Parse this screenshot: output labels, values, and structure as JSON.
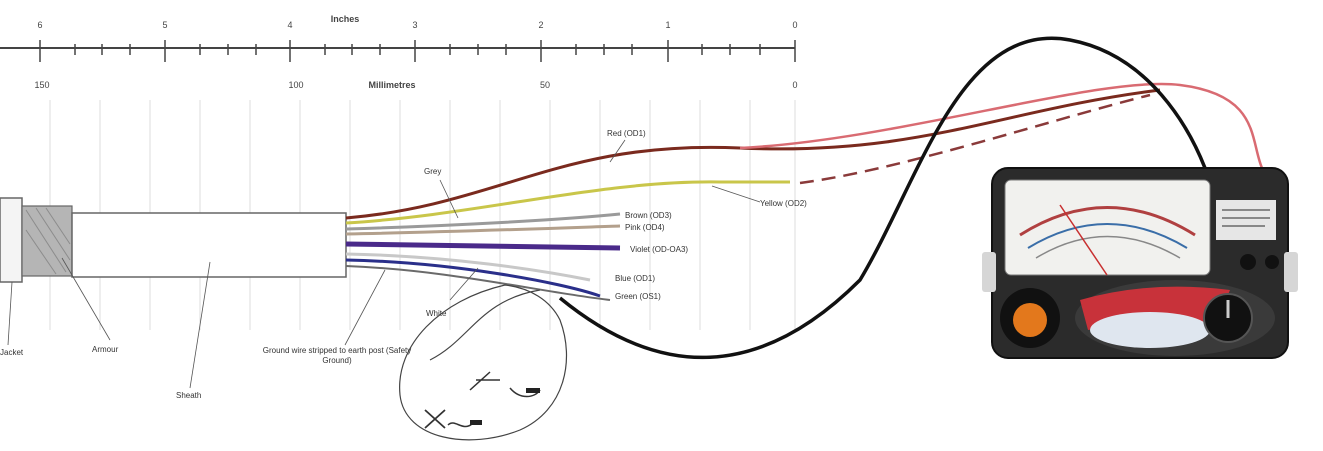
{
  "ruler": {
    "top_units": "Inches",
    "bottom_units": "Millimetres",
    "inch_ticks": [
      "6",
      "5",
      "4",
      "3",
      "2",
      "1",
      "0"
    ],
    "mm_ticks": [
      "150",
      "100",
      "50",
      "0"
    ]
  },
  "wire_labels": {
    "red": "Red (OD1)",
    "grey": "Grey",
    "yellow": "Yellow (OD2)",
    "brown": "Brown (OD3)",
    "pink": "Pink (OD4)",
    "violet": "Violet (OD-OA3)",
    "blue": "Blue (OD1)",
    "green": "Green (OS1)",
    "white": "White"
  },
  "part_labels": {
    "outer_jacket": "Jacket",
    "armour": "Armour",
    "sheath": "Sheath",
    "ground_wire": "Ground wire stripped to earth post (Safety Ground)"
  },
  "colors": {
    "red_wire": "#d96b72",
    "brown_wire": "#7a2a1e",
    "yellow_wire": "#c9c64a",
    "grey_wire": "#9a9a9a",
    "violet_wire": "#4a2a8a",
    "blue_wire": "#2a2f8a",
    "black_lead": "#111111",
    "meter_body": "#2b2b2b",
    "meter_knob": "#e3781c",
    "meter_red_panel": "#c8323a"
  }
}
